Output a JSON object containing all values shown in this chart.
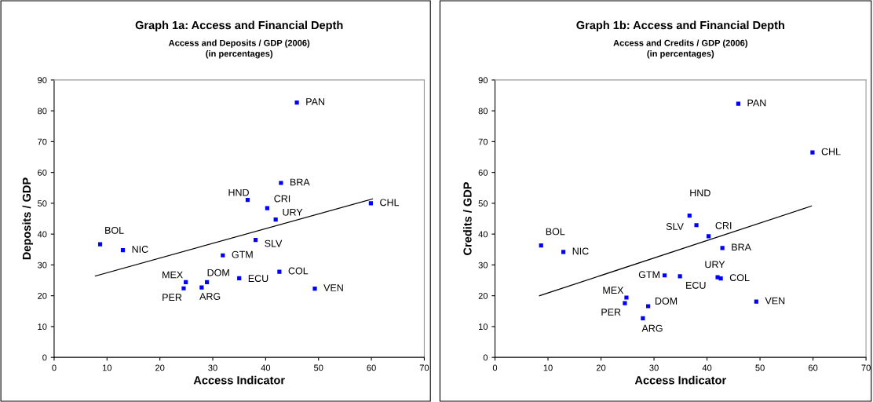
{
  "chart_data": [
    {
      "type": "scatter",
      "title": "Graph 1a: Access and Financial Depth",
      "subtitle": "Access and Deposits / GDP (2006)\n(in percentages)",
      "xlabel": "Access Indicator",
      "ylabel": "Deposits / GDP",
      "xlim": [
        0,
        70
      ],
      "xticks": [
        0,
        10,
        20,
        30,
        40,
        50,
        60,
        70
      ],
      "ylim": [
        0,
        90
      ],
      "yticks": [
        0,
        10,
        20,
        30,
        40,
        50,
        60,
        70,
        80,
        90
      ],
      "grid": false,
      "legend": false,
      "series": [
        {
          "type": "scatter",
          "marker": "square",
          "color": "#0000ff",
          "x": [
            45.9,
            42.9,
            36.6,
            40.3,
            41.9,
            59.9,
            8.7,
            13.0,
            38.1,
            31.9,
            24.9,
            24.5,
            27.9,
            28.9,
            35.0,
            42.6,
            49.3
          ],
          "values": [
            82.7,
            56.6,
            51.1,
            48.4,
            44.7,
            50.0,
            36.7,
            34.8,
            38.1,
            33.1,
            24.4,
            22.4,
            22.7,
            24.4,
            25.7,
            27.8,
            22.3
          ]
        },
        {
          "type": "line",
          "color": "#000000",
          "x": [
            7.8,
            60.2
          ],
          "values": [
            26.4,
            51.4
          ]
        }
      ],
      "annotations": [
        {
          "text": "PAN",
          "x": 45.9,
          "y": 82.7
        },
        {
          "text": "BRA",
          "x": 42.9,
          "y": 56.6
        },
        {
          "text": "HND",
          "x": 36.6,
          "y": 51.1
        },
        {
          "text": "CRI",
          "x": 40.3,
          "y": 48.4
        },
        {
          "text": "URY",
          "x": 41.9,
          "y": 44.7
        },
        {
          "text": "CHL",
          "x": 59.9,
          "y": 50.0
        },
        {
          "text": "BOL",
          "x": 8.7,
          "y": 36.7
        },
        {
          "text": "NIC",
          "x": 13.0,
          "y": 34.8
        },
        {
          "text": "SLV",
          "x": 38.1,
          "y": 38.1
        },
        {
          "text": "GTM",
          "x": 31.9,
          "y": 33.1
        },
        {
          "text": "MEX",
          "x": 24.9,
          "y": 24.4
        },
        {
          "text": "PER",
          "x": 24.5,
          "y": 22.4
        },
        {
          "text": "ARG",
          "x": 27.9,
          "y": 22.7
        },
        {
          "text": "DOM",
          "x": 28.9,
          "y": 24.4
        },
        {
          "text": "ECU",
          "x": 35.0,
          "y": 25.7
        },
        {
          "text": "COL",
          "x": 42.6,
          "y": 27.8
        },
        {
          "text": "VEN",
          "x": 49.3,
          "y": 22.3
        }
      ]
    },
    {
      "type": "scatter",
      "title": "Graph 1b: Access and Financial Depth",
      "subtitle": "Access and Credits / GDP (2006)\n(in percentages)",
      "xlabel": "Access Indicator",
      "ylabel": "Credits / GDP",
      "xlim": [
        0,
        70
      ],
      "xticks": [
        0,
        10,
        20,
        30,
        40,
        50,
        60,
        70
      ],
      "ylim": [
        0,
        90
      ],
      "yticks": [
        0,
        10,
        20,
        30,
        40,
        50,
        60,
        70,
        80,
        90
      ],
      "grid": false,
      "legend": false,
      "series": [
        {
          "type": "scatter",
          "marker": "square",
          "color": "#0000ff",
          "x": [
            45.9,
            59.9,
            36.7,
            38.0,
            40.3,
            42.9,
            8.7,
            12.9,
            32.0,
            34.9,
            42.0,
            42.6,
            24.8,
            24.5,
            28.9,
            27.9,
            49.3
          ],
          "values": [
            82.3,
            66.5,
            46.0,
            42.9,
            39.3,
            35.5,
            36.3,
            34.2,
            26.6,
            26.3,
            26.0,
            25.6,
            19.4,
            17.6,
            16.6,
            12.7,
            18.1
          ]
        },
        {
          "type": "line",
          "color": "#000000",
          "x": [
            8.4,
            59.7
          ],
          "values": [
            20.0,
            49.1
          ]
        }
      ],
      "annotations": [
        {
          "text": "PAN",
          "x": 45.9,
          "y": 82.3
        },
        {
          "text": "CHL",
          "x": 59.9,
          "y": 66.5
        },
        {
          "text": "HND",
          "x": 36.7,
          "y": 46.0
        },
        {
          "text": "SLV",
          "x": 38.0,
          "y": 42.9
        },
        {
          "text": "CRI",
          "x": 40.3,
          "y": 39.3
        },
        {
          "text": "BRA",
          "x": 42.9,
          "y": 35.5
        },
        {
          "text": "BOL",
          "x": 8.7,
          "y": 36.3
        },
        {
          "text": "NIC",
          "x": 12.9,
          "y": 34.2
        },
        {
          "text": "GTM",
          "x": 32.0,
          "y": 26.6
        },
        {
          "text": "ECU",
          "x": 34.9,
          "y": 26.3
        },
        {
          "text": "URY",
          "x": 42.0,
          "y": 26.0
        },
        {
          "text": "COL",
          "x": 42.6,
          "y": 25.6
        },
        {
          "text": "MEX",
          "x": 24.8,
          "y": 19.4
        },
        {
          "text": "PER",
          "x": 24.5,
          "y": 17.6
        },
        {
          "text": "DOM",
          "x": 28.9,
          "y": 16.6
        },
        {
          "text": "ARG",
          "x": 27.9,
          "y": 12.7
        },
        {
          "text": "VEN",
          "x": 49.3,
          "y": 18.1
        }
      ]
    }
  ]
}
